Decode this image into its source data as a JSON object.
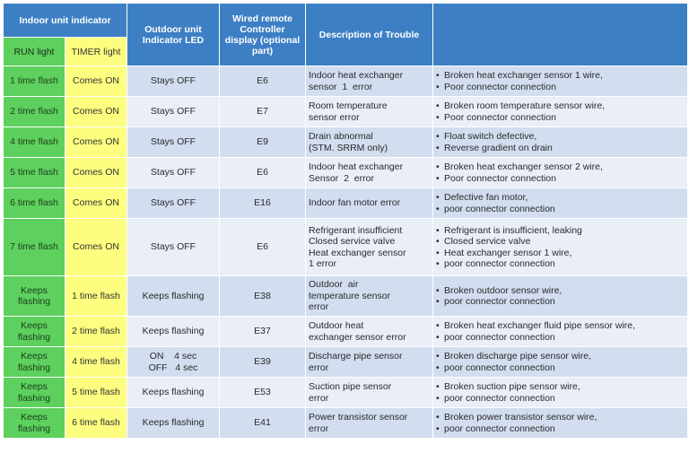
{
  "header": {
    "indoor_group": "Indoor unit indicator",
    "run": "RUN light",
    "timer": "TIMER light",
    "outdoor": "Outdoor unit Indicator LED",
    "wired": "Wired remote Controller display (optional part)",
    "description": "Description of Trouble",
    "cause": ""
  },
  "rows": [
    {
      "run": "1 time flash",
      "timer": "Comes ON",
      "outdoor": [
        "Stays OFF"
      ],
      "code": "E6",
      "desc": [
        "Indoor heat exchanger",
        "sensor  1  error"
      ],
      "causes": [
        "Broken heat exchanger sensor 1 wire,",
        "Poor  connector connection"
      ]
    },
    {
      "run": "2 time flash",
      "timer": "Comes ON",
      "outdoor": [
        "Stays OFF"
      ],
      "code": "E7",
      "desc": [
        "Room temperature",
        "sensor error"
      ],
      "causes": [
        "Broken room temperature sensor wire,",
        "Poor connector connection"
      ]
    },
    {
      "run": "4 time flash",
      "timer": "Comes ON",
      "outdoor": [
        "Stays OFF"
      ],
      "code": "E9",
      "desc": [
        "Drain abnormal",
        "(STM. SRRM only)"
      ],
      "causes": [
        "Float switch defective,",
        "Reverse gradient on drain"
      ]
    },
    {
      "run": "5 time flash",
      "timer": "Comes ON",
      "outdoor": [
        "Stays OFF"
      ],
      "code": "E6",
      "desc": [
        "Indoor heat exchanger",
        "Sensor  2  error"
      ],
      "causes": [
        "Broken heat exchanger sensor 2 wire,",
        "Poor  connector connection"
      ]
    },
    {
      "run": "6 time flash",
      "timer": "Comes ON",
      "outdoor": [
        "Stays OFF"
      ],
      "code": "E16",
      "desc": [
        "Indoor fan motor error"
      ],
      "causes": [
        "Defective fan motor,",
        "poor connector connection"
      ]
    },
    {
      "run": "7 time flash",
      "timer": "Comes ON",
      "outdoor": [
        "Stays OFF"
      ],
      "code": "E6",
      "desc": [
        "Refrigerant insufficient",
        "Closed service valve",
        "Heat exchanger sensor",
        "1 error"
      ],
      "causes": [
        "Refrigerant is insufficient, leaking",
        "Closed service valve",
        "Heat exchanger sensor 1 wire,",
        "poor connector connection"
      ]
    },
    {
      "run": "Keeps flashing",
      "timer": "1 time flash",
      "outdoor": [
        "Keeps flashing"
      ],
      "code": "E38",
      "desc": [
        "Outdoor  air",
        "temperature sensor",
        "error"
      ],
      "causes": [
        "Broken outdoor sensor wire,",
        "poor connector connection"
      ]
    },
    {
      "run": "Keeps flashing",
      "timer": "2 time flash",
      "outdoor": [
        "Keeps flashing"
      ],
      "code": "E37",
      "desc": [
        "Outdoor heat",
        "exchanger sensor error"
      ],
      "causes": [
        "Broken heat exchanger fluid pipe sensor wire,",
        "poor connector connection"
      ]
    },
    {
      "run": "Keeps flashing",
      "timer": "4 time flash",
      "outdoor": [
        "ON    4 sec",
        "OFF   4 sec"
      ],
      "code": "E39",
      "desc": [
        "Discharge pipe sensor",
        "error"
      ],
      "causes": [
        "Broken discharge pipe sensor wire,",
        "poor connector connection"
      ]
    },
    {
      "run": "Keeps flashing",
      "timer": "5 time flash",
      "outdoor": [
        "Keeps flashing"
      ],
      "code": "E53",
      "desc": [
        "Suction pipe sensor",
        "error"
      ],
      "causes": [
        "Broken suction pipe sensor wire,",
        "poor connector connection"
      ]
    },
    {
      "run": "Keeps flashing",
      "timer": "6 time flash",
      "outdoor": [
        "Keeps flashing"
      ],
      "code": "E41",
      "desc": [
        "Power transistor sensor",
        "error"
      ],
      "causes": [
        "Broken power transistor sensor wire,",
        "poor connector connection"
      ]
    }
  ]
}
